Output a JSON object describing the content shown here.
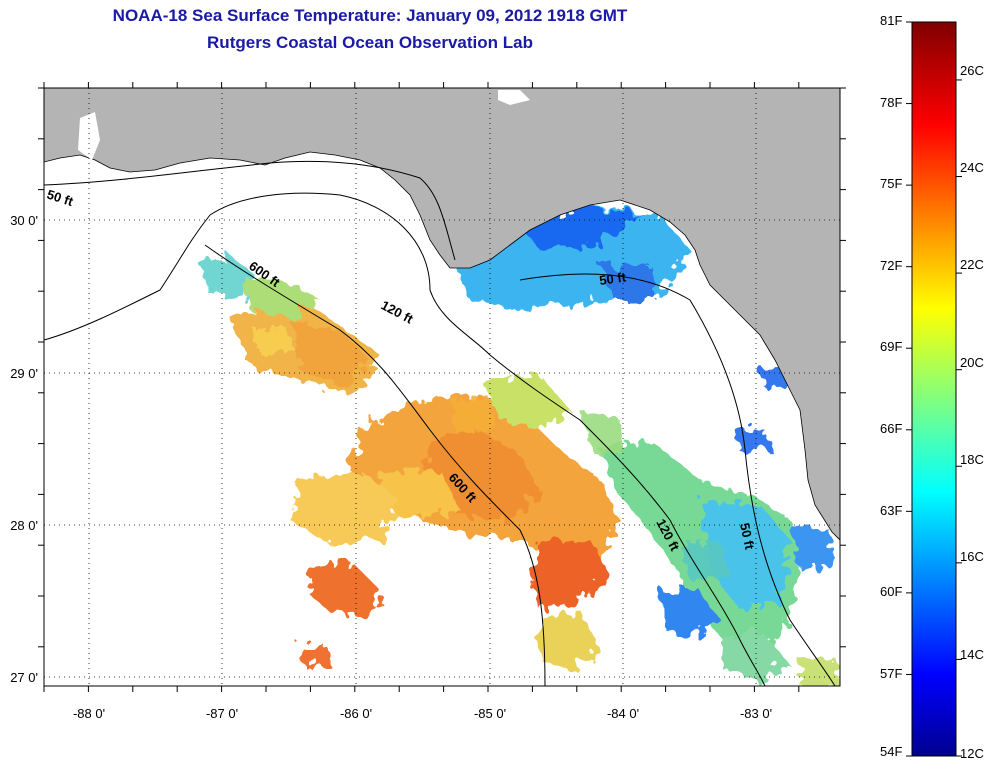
{
  "title": "NOAA-18 Sea Surface Temperature:  January 09, 2012 1918 GMT",
  "subtitle": "Rutgers Coastal Ocean Observation Lab",
  "map": {
    "x_ticks": [
      "-88 0'",
      "-87 0'",
      "-86 0'",
      "-85 0'",
      "-84 0'",
      "-83 0'"
    ],
    "y_ticks": [
      "30 0'",
      "29 0'",
      "28 0'",
      "27 0'"
    ],
    "contour_labels": [
      "50 ft",
      "600 ft",
      "120 ft",
      "50 ft",
      "600 ft",
      "120 ft",
      "50 ft"
    ],
    "colors": {
      "land": "#b4b4b4",
      "cloud": "#ffffff"
    }
  },
  "colorbar": {
    "fahrenheit": [
      "81F",
      "78F",
      "75F",
      "72F",
      "69F",
      "66F",
      "63F",
      "60F",
      "57F",
      "54F"
    ],
    "celsius": [
      "26C",
      "24C",
      "22C",
      "20C",
      "18C",
      "16C",
      "14C",
      "12C"
    ],
    "range_f": [
      54,
      81
    ],
    "range_c": [
      12,
      27.2
    ]
  }
}
